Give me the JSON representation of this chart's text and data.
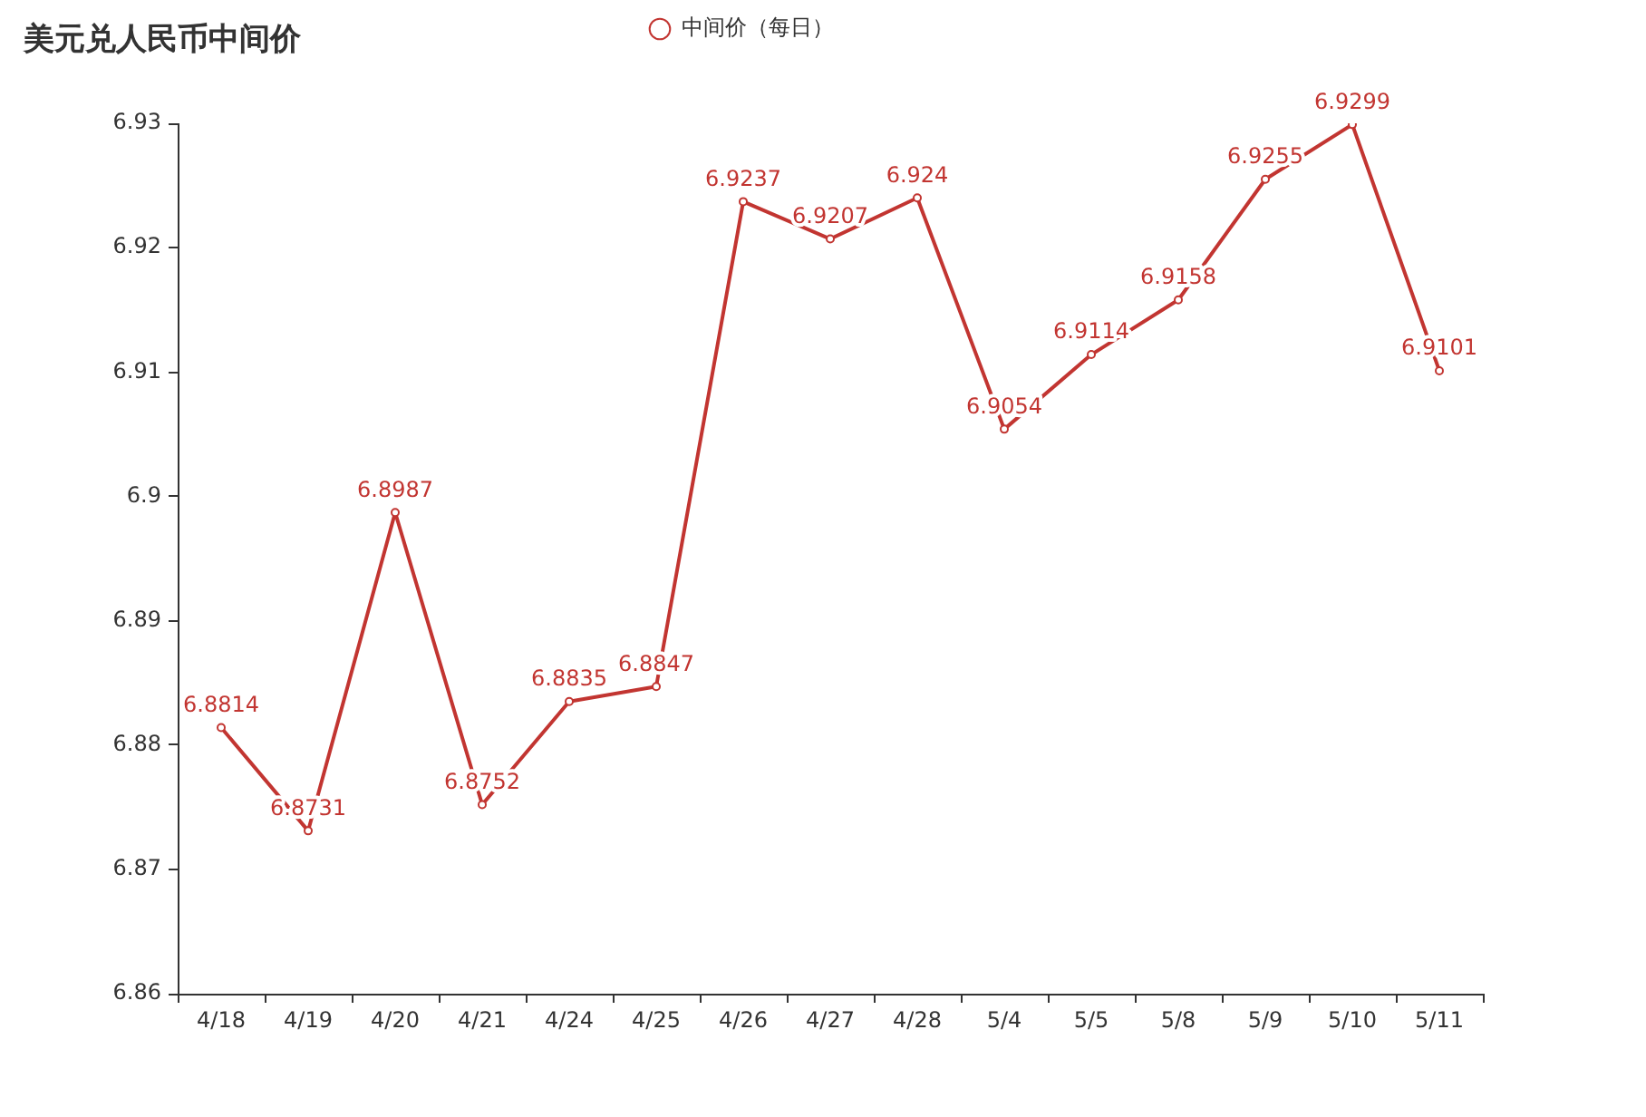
{
  "chart_data": {
    "type": "line",
    "title": "美元兑人民币中间价",
    "categories": [
      "4/18",
      "4/19",
      "4/20",
      "4/21",
      "4/24",
      "4/25",
      "4/26",
      "4/27",
      "4/28",
      "5/4",
      "5/5",
      "5/8",
      "5/9",
      "5/10",
      "5/11"
    ],
    "series": [
      {
        "name": "中间价（每日）",
        "color": "#c23531",
        "values": [
          6.8814,
          6.8731,
          6.8987,
          6.8752,
          6.8835,
          6.8847,
          6.9237,
          6.9207,
          6.924,
          6.9054,
          6.9114,
          6.9158,
          6.9255,
          6.9299,
          6.9101
        ]
      }
    ],
    "ylim": [
      6.86,
      6.93
    ],
    "yticks": [
      6.86,
      6.87,
      6.88,
      6.89,
      6.9,
      6.91,
      6.92,
      6.93
    ],
    "grid": false,
    "legend": "top",
    "marker": "circle",
    "line_style": "solid",
    "data_labels": true
  }
}
